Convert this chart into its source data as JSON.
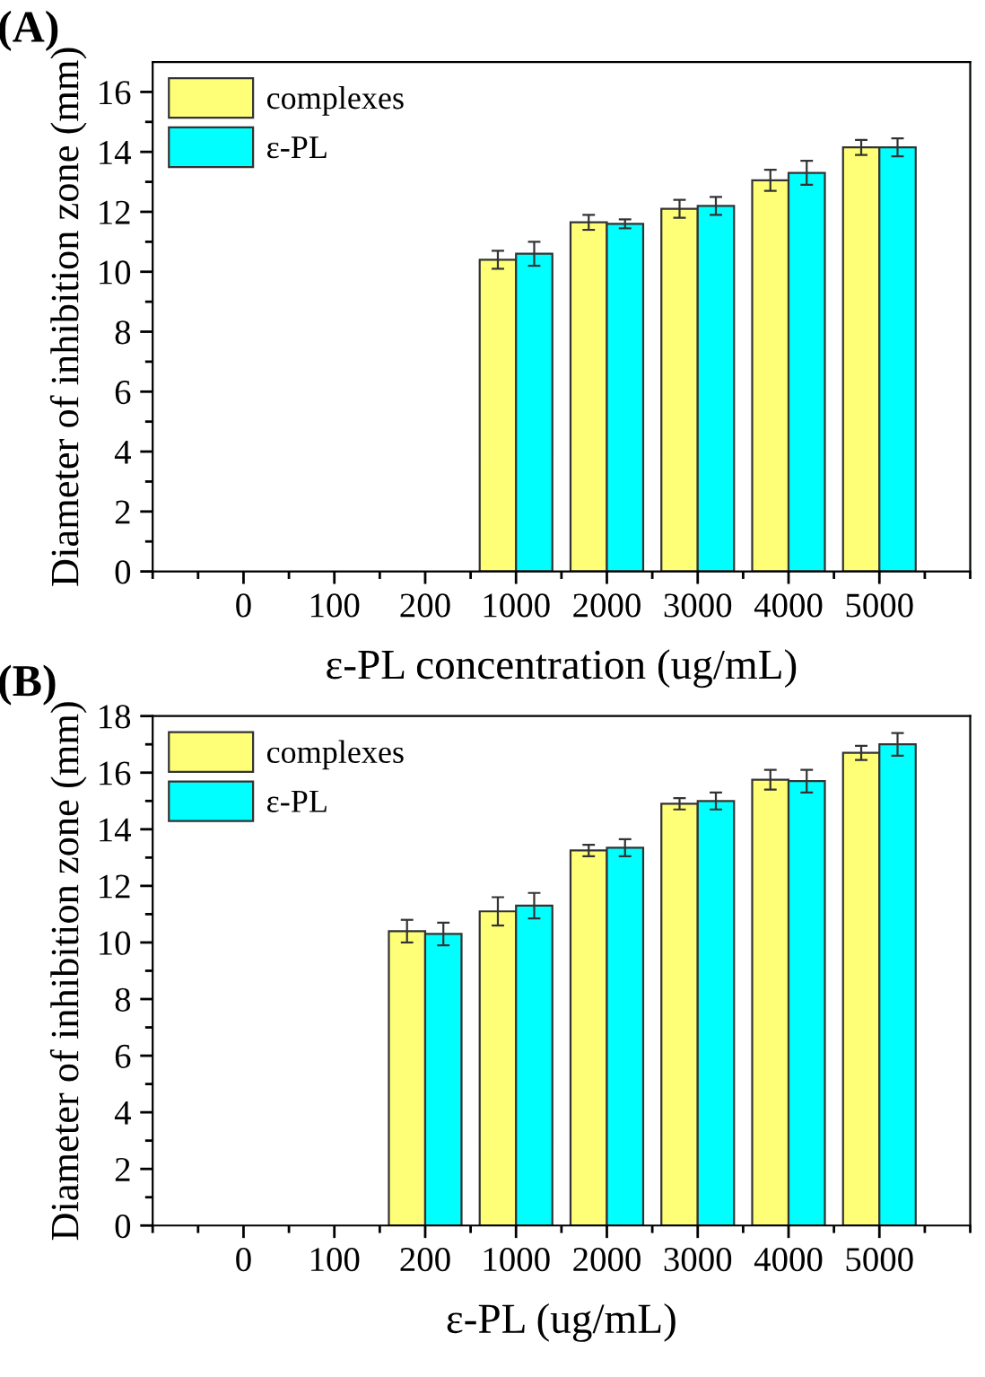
{
  "chart_data": [
    {
      "type": "bar",
      "title": "(A)",
      "xlabel": "ε-PL concentration (ug/mL)",
      "ylabel": "Diameter of inhibition zone (mm)",
      "categories": [
        "0",
        "100",
        "200",
        "1000",
        "2000",
        "3000",
        "4000",
        "5000"
      ],
      "series": [
        {
          "name": "complexes",
          "color": "#ffff77",
          "values": [
            null,
            null,
            null,
            10.4,
            11.65,
            12.1,
            13.05,
            14.15
          ],
          "errors": [
            null,
            null,
            null,
            0.3,
            0.25,
            0.3,
            0.35,
            0.25
          ]
        },
        {
          "name": "ε-PL",
          "color": "#00ffff",
          "values": [
            null,
            null,
            null,
            10.6,
            11.6,
            12.2,
            13.3,
            14.15
          ],
          "errors": [
            null,
            null,
            null,
            0.4,
            0.15,
            0.3,
            0.4,
            0.3
          ]
        }
      ],
      "ylim": [
        0,
        17
      ],
      "yticks": [
        0,
        2,
        4,
        6,
        8,
        10,
        12,
        14,
        16
      ],
      "grid": false,
      "legend": "top left"
    },
    {
      "type": "bar",
      "title": "(B)",
      "xlabel": "ε-PL (ug/mL)",
      "ylabel": "Diameter of inhibition zone (mm)",
      "categories": [
        "0",
        "100",
        "200",
        "1000",
        "2000",
        "3000",
        "4000",
        "5000"
      ],
      "series": [
        {
          "name": "complexes",
          "color": "#ffff77",
          "values": [
            null,
            null,
            10.4,
            11.1,
            13.25,
            14.9,
            15.75,
            16.7
          ],
          "errors": [
            null,
            null,
            0.4,
            0.5,
            0.2,
            0.2,
            0.35,
            0.25
          ]
        },
        {
          "name": "ε-PL",
          "color": "#00ffff",
          "values": [
            null,
            null,
            10.3,
            11.3,
            13.35,
            15.0,
            15.7,
            17.0
          ],
          "errors": [
            null,
            null,
            0.4,
            0.45,
            0.3,
            0.3,
            0.4,
            0.4
          ]
        }
      ],
      "ylim": [
        0,
        18
      ],
      "yticks": [
        0,
        2,
        4,
        6,
        8,
        10,
        12,
        14,
        16,
        18
      ],
      "grid": false,
      "legend": "top left"
    }
  ]
}
